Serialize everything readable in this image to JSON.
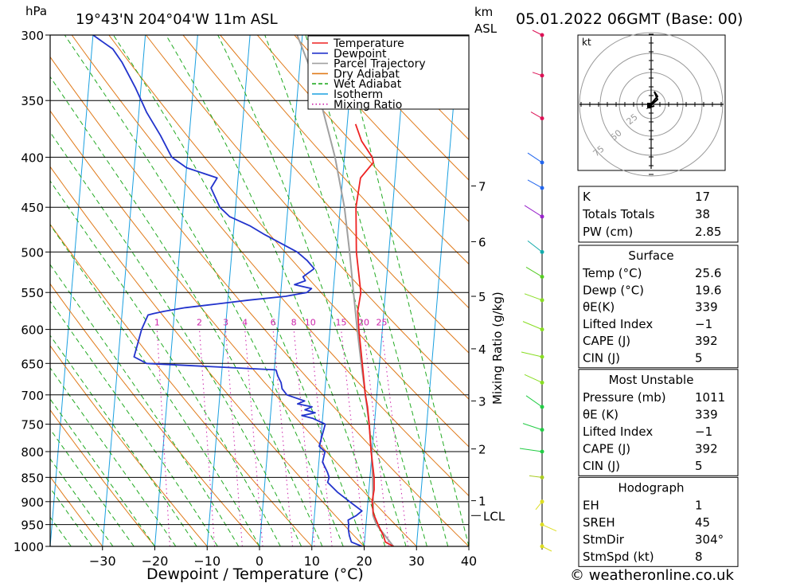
{
  "header": {
    "pressure_unit": "hPa",
    "location": "19°43'N  204°04'W  11m  ASL",
    "km_label": "km",
    "asl_label": "ASL",
    "datetime": "05.01.2022  06GMT  (Base: 00)"
  },
  "legend": [
    "Temperature",
    "Dewpoint",
    "Parcel Trajectory",
    "Dry Adiabat",
    "Wet Adiabat",
    "Isotherm",
    "Mixing Ratio"
  ],
  "colors": {
    "temperature": "#ee2222",
    "dewpoint": "#2233cc",
    "parcel": "#a0a0a0",
    "dry_adiabat": "#e07a1a",
    "wet_adiabat": "#22aa22",
    "isotherm": "#1aa0e0",
    "mixing_ratio": "#cc22aa"
  },
  "footer": {
    "xlabel": "Dewpoint / Temperature (°C)",
    "mixing_label": "Mixing Ratio (g/kg)",
    "site": "© weatheronline.co.uk"
  },
  "chart_data": {
    "type": "line",
    "title": "19°43'N  204°04'W  11m  ASL",
    "xlabel": "Dewpoint / Temperature (°C)",
    "ylabel": "hPa",
    "xlim": [
      -40,
      40
    ],
    "pressure_range": [
      1000,
      300
    ],
    "y_scale": "log",
    "xticks": [
      -30,
      -20,
      -10,
      0,
      10,
      20,
      30,
      40
    ],
    "pressure_levels": [
      300,
      350,
      400,
      450,
      500,
      550,
      600,
      650,
      700,
      750,
      800,
      850,
      900,
      950,
      1000
    ],
    "km_ticks": [
      {
        "km": "1",
        "p": 898
      },
      {
        "km": "2",
        "p": 795
      },
      {
        "km": "3",
        "p": 710
      },
      {
        "km": "4",
        "p": 628
      },
      {
        "km": "5",
        "p": 555
      },
      {
        "km": "6",
        "p": 488
      },
      {
        "km": "7",
        "p": 428
      }
    ],
    "lcl": {
      "label": "LCL",
      "p": 930
    },
    "mixing_ratio_labels": [
      "1",
      "2",
      "3",
      "4",
      "6",
      "8",
      "10",
      "15",
      "20",
      "25"
    ],
    "mixing_ratio_values": [
      1,
      2,
      3,
      4,
      6,
      8,
      10,
      15,
      20,
      25
    ],
    "skew_per_decade": 103,
    "series": [
      {
        "name": "Temperature",
        "p": [
          1000,
          990,
          975,
          950,
          925,
          900,
          875,
          850,
          800,
          750,
          720,
          700,
          650,
          600,
          575,
          550,
          500,
          450,
          420,
          405,
          400,
          385,
          370
        ],
        "t": [
          25.6,
          24.0,
          23.5,
          22.3,
          21.2,
          20.8,
          21.0,
          20.8,
          19.8,
          19.0,
          18.4,
          17.8,
          16.7,
          15.5,
          15.0,
          15.3,
          13.8,
          13.0,
          13.4,
          15.6,
          15.3,
          13.0,
          11.6
        ]
      },
      {
        "name": "Dewpoint",
        "p": [
          1000,
          990,
          975,
          960,
          950,
          940,
          930,
          920,
          900,
          880,
          860,
          850,
          840,
          820,
          800,
          790,
          750,
          740,
          735,
          730,
          725,
          720,
          715,
          710,
          700,
          690,
          680,
          670,
          660,
          650,
          640,
          620,
          600,
          580,
          578,
          575,
          570,
          565,
          560,
          555,
          550,
          545,
          540,
          535,
          530,
          520,
          510,
          500,
          480,
          470,
          460,
          450,
          430,
          420,
          410,
          400,
          380,
          360,
          340,
          320,
          310,
          305,
          300
        ],
        "td": [
          19.6,
          17.5,
          17.0,
          16.7,
          16.7,
          16.5,
          18.0,
          19.0,
          16.5,
          14.0,
          12.0,
          12.2,
          11.8,
          10.7,
          11.0,
          9.8,
          10.6,
          8.2,
          6.0,
          8.5,
          6.5,
          7.8,
          5.0,
          6.3,
          2.8,
          1.8,
          1.5,
          0.8,
          0.3,
          -24.5,
          -27.0,
          -26.5,
          -26.0,
          -25.0,
          -24.0,
          -22.0,
          -18.0,
          -12.0,
          -6.0,
          1.0,
          5.0,
          5.8,
          2.5,
          4.5,
          4.0,
          6.0,
          4.5,
          2.5,
          -4.0,
          -7.0,
          -11.0,
          -13.0,
          -15.0,
          -14.0,
          -20.0,
          -23.0,
          -25.5,
          -28.5,
          -31.0,
          -34.0,
          -36.0,
          -38.0,
          -40.0
        ]
      },
      {
        "name": "Parcel Trajectory",
        "p": [
          1000,
          950,
          930,
          900,
          850,
          800,
          750,
          700,
          650,
          600,
          550,
          500,
          450,
          400,
          350,
          320,
          300
        ],
        "t": [
          25.6,
          22.0,
          21.2,
          21.0,
          20.5,
          19.9,
          19.0,
          17.8,
          16.5,
          15.2,
          13.9,
          12.5,
          10.8,
          8.2,
          4.5,
          1.5,
          -1.0
        ]
      }
    ]
  },
  "indices": {
    "rows": [
      {
        "label": "K",
        "value": "17"
      },
      {
        "label": "Totals Totals",
        "value": "38"
      },
      {
        "label": "PW (cm)",
        "value": "2.85"
      }
    ]
  },
  "surface": {
    "title": "Surface",
    "rows": [
      {
        "label": "Temp (°C)",
        "value": "25.6"
      },
      {
        "label": "Dewp (°C)",
        "value": "19.6"
      },
      {
        "label": "θE(K)",
        "value": "339"
      },
      {
        "label": "Lifted Index",
        "value": "−1"
      },
      {
        "label": "CAPE (J)",
        "value": "392"
      },
      {
        "label": "CIN (J)",
        "value": "5"
      }
    ]
  },
  "most_unstable": {
    "title": "Most Unstable",
    "rows": [
      {
        "label": "Pressure (mb)",
        "value": "1011"
      },
      {
        "label": "θE (K)",
        "value": "339"
      },
      {
        "label": "Lifted Index",
        "value": "−1"
      },
      {
        "label": "CAPE (J)",
        "value": "392"
      },
      {
        "label": "CIN (J)",
        "value": "5"
      }
    ]
  },
  "hodograph_table": {
    "title": "Hodograph",
    "rows": [
      {
        "label": "EH",
        "value": "1"
      },
      {
        "label": "SREH",
        "value": "45"
      },
      {
        "label": "StmDir",
        "value": "304°"
      },
      {
        "label": "StmSpd (kt)",
        "value": "8"
      }
    ]
  },
  "hodograph": {
    "unit": "kt",
    "ring_labels": [
      "25",
      "50",
      "75"
    ]
  }
}
